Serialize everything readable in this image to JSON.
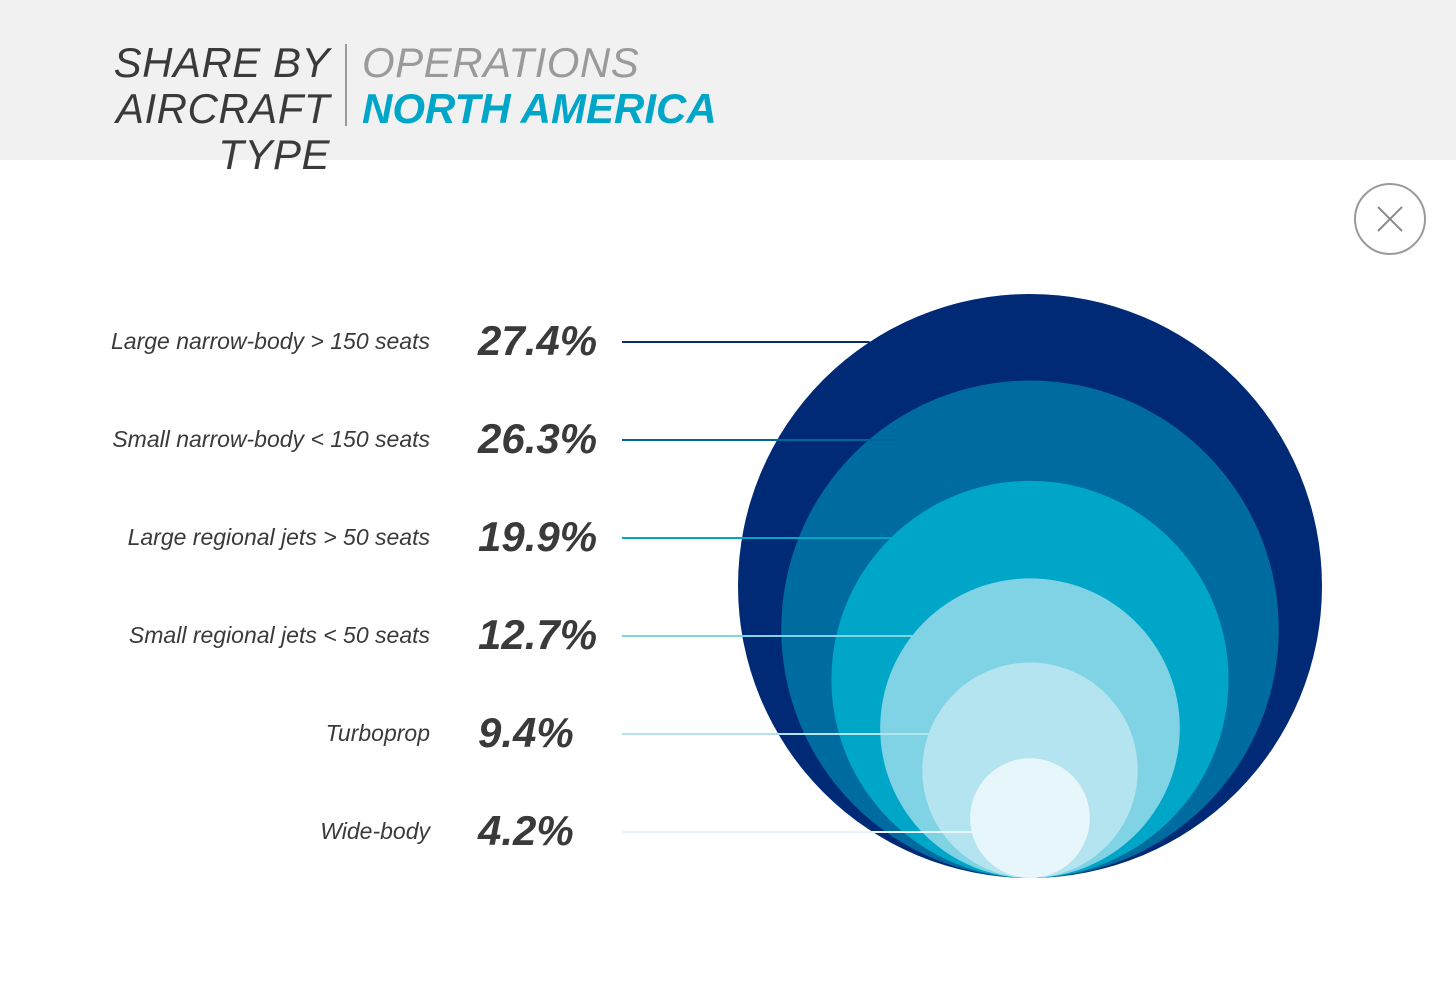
{
  "header": {
    "title_line1": "SHARE BY",
    "title_line2": "AIRCRAFT TYPE",
    "subtitle": "OPERATIONS",
    "region": "NORTH AMERICA"
  },
  "close_icon": "close-icon",
  "chart_data": {
    "type": "nested-bubble",
    "title": "SHARE BY AIRCRAFT TYPE",
    "categories": [
      "Large narrow-body > 150 seats",
      "Small narrow-body < 150 seats",
      "Large regional jets > 50 seats",
      "Small regional jets < 50 seats",
      "Turboprop",
      "Wide-body"
    ],
    "values": [
      27.4,
      26.3,
      19.9,
      12.7,
      9.4,
      4.2
    ],
    "value_labels": [
      "27.4%",
      "26.3%",
      "19.9%",
      "12.7%",
      "9.4%",
      "4.2%"
    ],
    "colors": [
      "#002a76",
      "#006b9e",
      "#00a6c8",
      "#7fd3e4",
      "#b3e4ef",
      "#e6f6fa"
    ],
    "line_colors": [
      "#0a2a6e",
      "#00659a",
      "#00a6c8",
      "#7fd3e4",
      "#b3e4ef",
      "#e6f6fa"
    ]
  }
}
